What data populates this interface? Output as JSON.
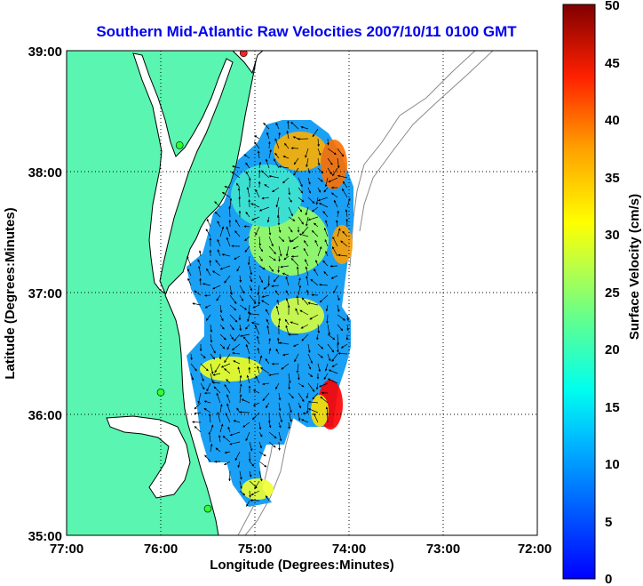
{
  "chart_data": {
    "type": "heatmap",
    "title": "Southern Mid-Atlantic Raw Velocities 2007/10/11 0100 GMT",
    "xlabel": "Longitude (Degrees:Minutes)",
    "ylabel": "Latitude (Degrees:Minutes)",
    "x_ticks": [
      "77:00",
      "76:00",
      "75:00",
      "74:00",
      "73:00",
      "72:00"
    ],
    "y_ticks": [
      "39:00",
      "38:00",
      "37:00",
      "36:00",
      "35:00"
    ],
    "xlim": [
      -77,
      -72
    ],
    "ylim": [
      35,
      39
    ],
    "grid": true,
    "colorbar": {
      "label": "Surface Velocity (cm/s)",
      "range": [
        0,
        50
      ],
      "ticks": [
        "50",
        "45",
        "40",
        "35",
        "30",
        "25",
        "20",
        "15",
        "10",
        "5",
        "0"
      ],
      "colormap": "jet"
    },
    "land_color": "#5af5b0",
    "radar_stations": [
      {
        "lon": -75.12,
        "lat": 38.98,
        "color": "#ff2020"
      },
      {
        "lon": -75.8,
        "lat": 38.22,
        "color": "#30ff30"
      },
      {
        "lon": -76.0,
        "lat": 36.18,
        "color": "#30ff30"
      },
      {
        "lon": -75.5,
        "lat": 35.22,
        "color": "#30ff30"
      }
    ],
    "high_velocity_zones": [
      {
        "lon": -74.85,
        "lat": 38.25,
        "speed_cm_s": 35
      },
      {
        "lon": -74.2,
        "lat": 38.0,
        "speed_cm_s": 38
      },
      {
        "lon": -74.0,
        "lat": 37.2,
        "speed_cm_s": 38
      },
      {
        "lon": -74.2,
        "lat": 36.1,
        "speed_cm_s": 50
      },
      {
        "lon": -75.4,
        "lat": 36.3,
        "speed_cm_s": 30
      },
      {
        "lon": -75.1,
        "lat": 35.35,
        "speed_cm_s": 28
      }
    ]
  }
}
